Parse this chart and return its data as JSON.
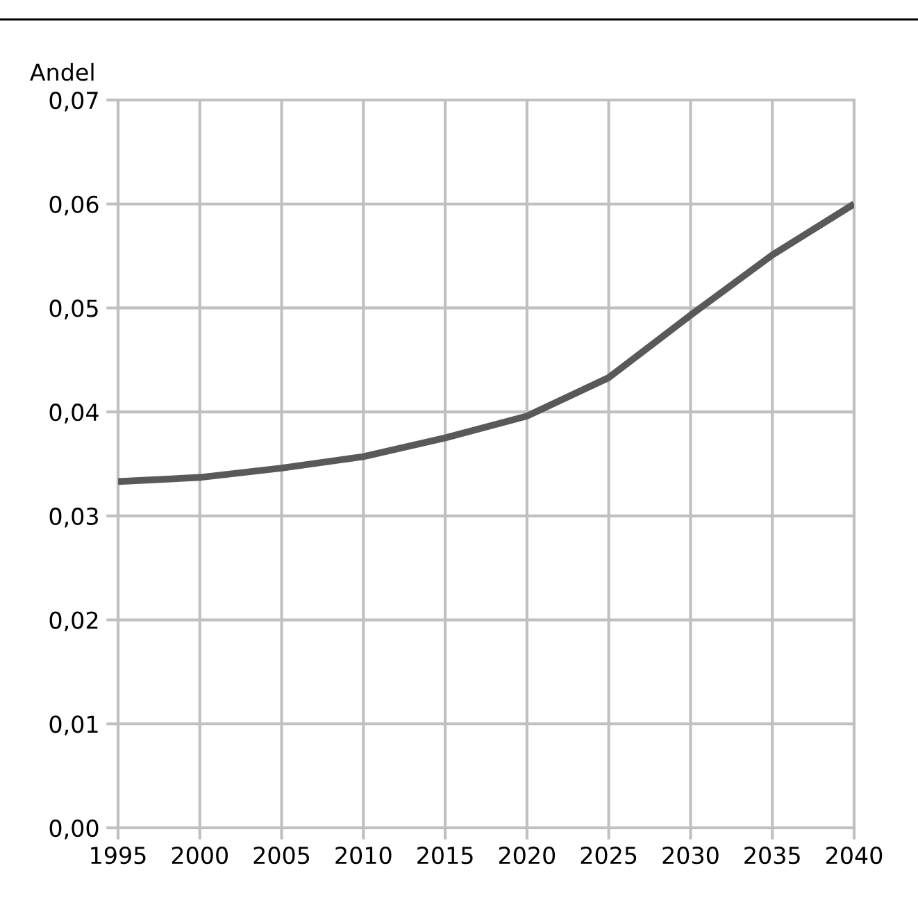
{
  "chart_data": {
    "type": "line",
    "ylabel": "Andel",
    "x": [
      1995,
      2000,
      2005,
      2010,
      2015,
      2020,
      2025,
      2030,
      2035,
      2040
    ],
    "series": [
      {
        "color": "#595959",
        "values": [
          0.0333,
          0.0337,
          0.0346,
          0.0357,
          0.0375,
          0.0396,
          0.0433,
          0.0493,
          0.0551,
          0.06
        ]
      }
    ],
    "xlim": [
      1995,
      2040
    ],
    "xticks": [
      1995,
      2000,
      2005,
      2010,
      2015,
      2020,
      2025,
      2030,
      2035,
      2040
    ],
    "ylim": [
      0,
      0.07
    ],
    "yticks": [
      {
        "value": 0,
        "label": "0,00"
      },
      {
        "value": 0.01,
        "label": "0,01"
      },
      {
        "value": 0.02,
        "label": "0,02"
      },
      {
        "value": 0.03,
        "label": "0,03"
      },
      {
        "value": 0.04,
        "label": "0,04"
      },
      {
        "value": 0.05,
        "label": "0,05"
      },
      {
        "value": 0.06,
        "label": "0,06"
      },
      {
        "value": 0.07,
        "label": "0,07"
      }
    ],
    "grid": true,
    "legend": false
  }
}
